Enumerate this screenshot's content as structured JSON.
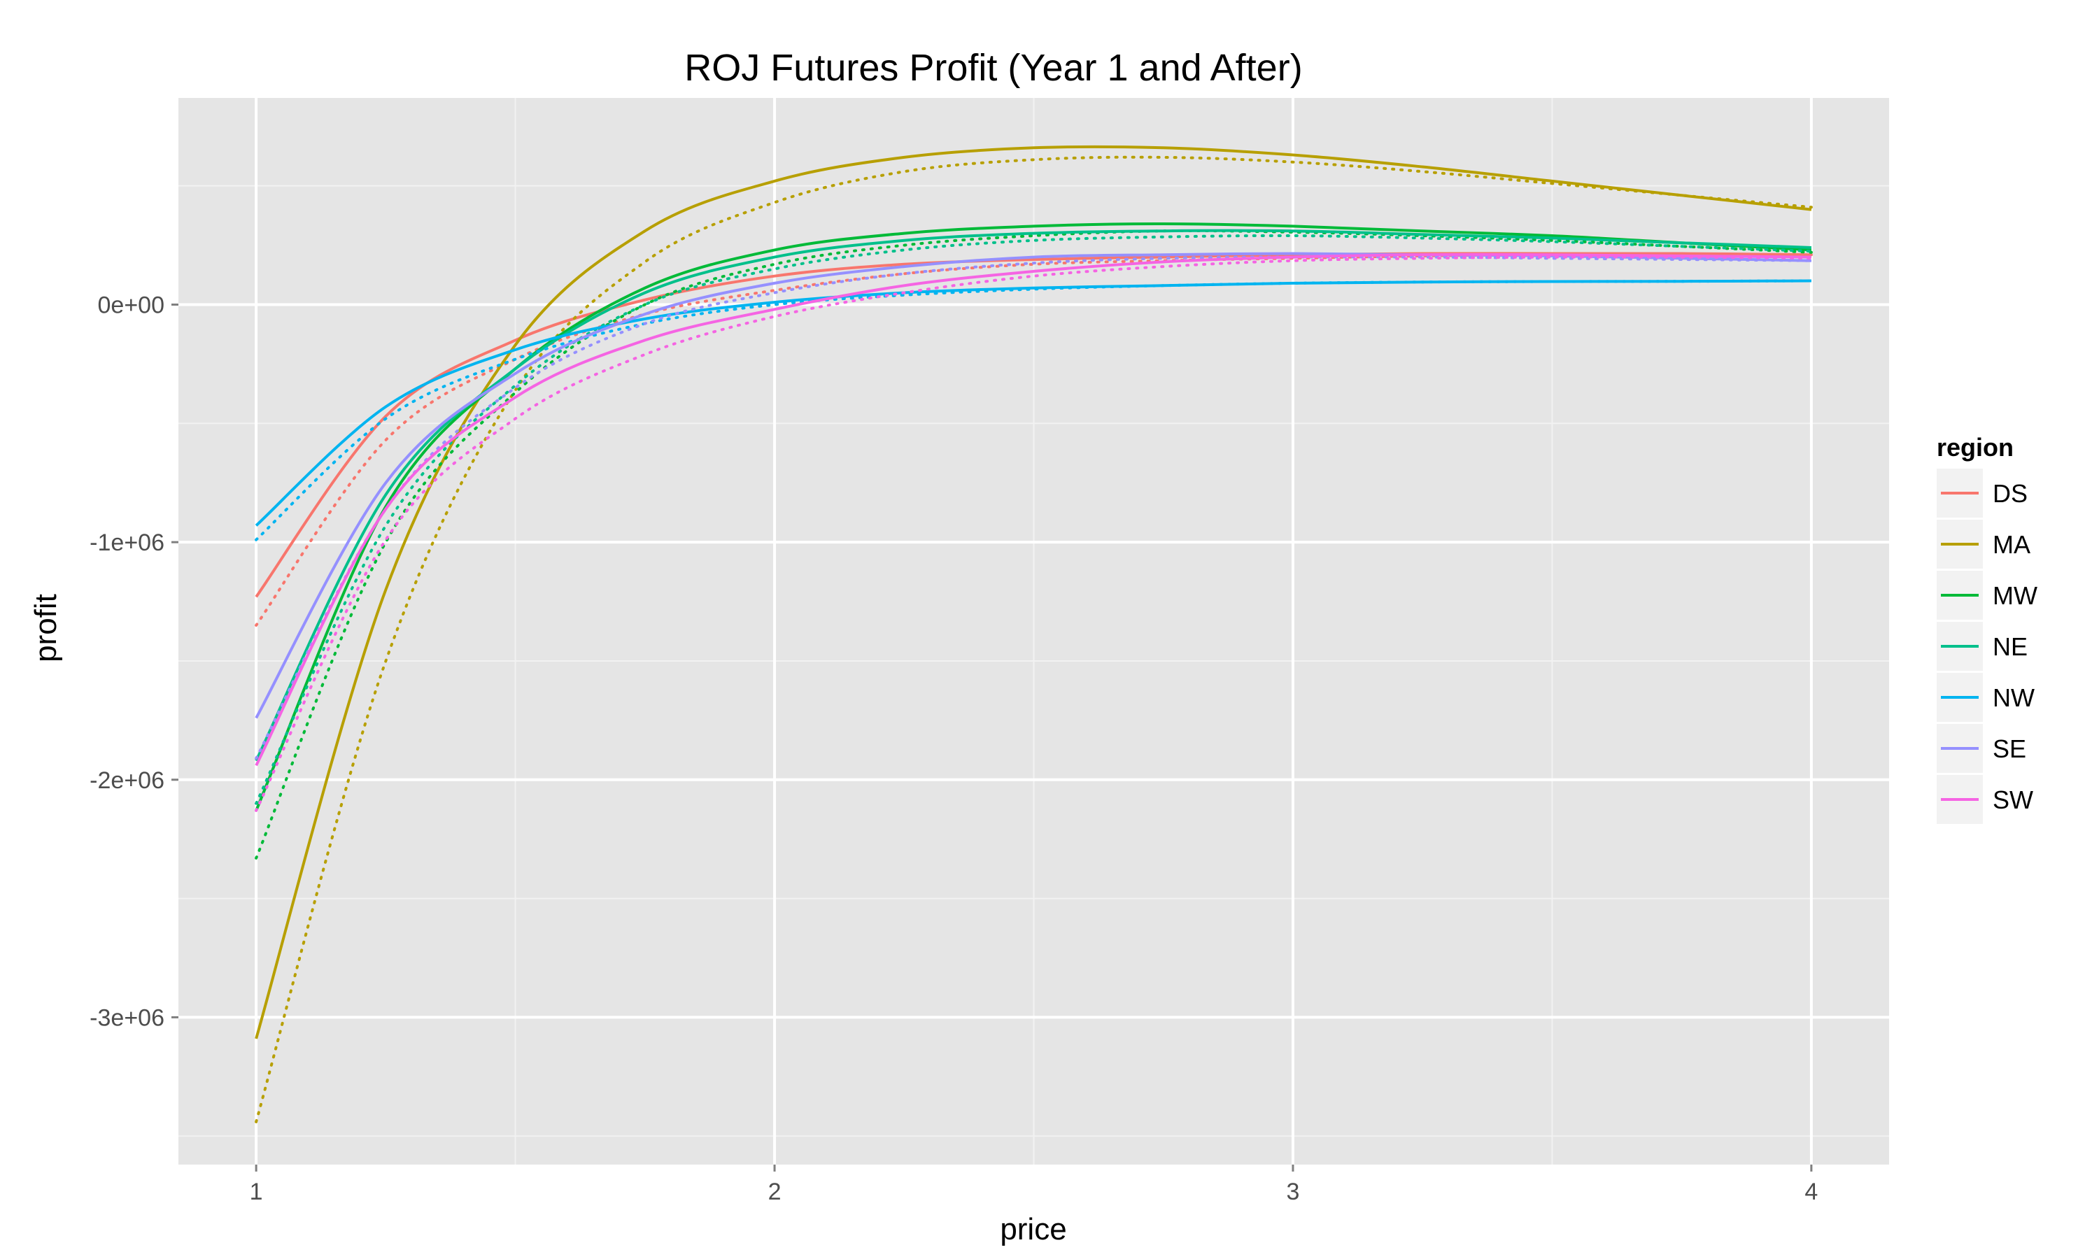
{
  "chart_data": {
    "type": "line",
    "title": "ROJ Futures Profit (Year 1 and After)",
    "xlabel": "price",
    "ylabel": "profit",
    "xlim": [
      0.85,
      4.15
    ],
    "ylim": [
      -3620000,
      870000
    ],
    "x_ticks": [
      {
        "value": 1,
        "label": "1"
      },
      {
        "value": 2,
        "label": "2"
      },
      {
        "value": 3,
        "label": "3"
      },
      {
        "value": 4,
        "label": "4"
      }
    ],
    "y_ticks": [
      {
        "value": 0,
        "label": "0e+00"
      },
      {
        "value": -1000000,
        "label": "-1e+06"
      },
      {
        "value": -2000000,
        "label": "-2e+06"
      },
      {
        "value": -3000000,
        "label": "-3e+06"
      }
    ],
    "grid": true,
    "legend": {
      "title": "region",
      "position": "right"
    },
    "line_styles": [
      {
        "name": "Year 1",
        "dash": "solid"
      },
      {
        "name": "After",
        "dash": "dotted"
      }
    ],
    "x": [
      1.0,
      1.25,
      1.5,
      1.75,
      2.0,
      2.25,
      2.5,
      2.75,
      3.0,
      3.25,
      3.5,
      3.75,
      4.0
    ],
    "series": [
      {
        "name": "DS",
        "color": "#F8766D",
        "solid": [
          -1230000,
          -470000,
          -150000,
          20000,
          120000,
          170000,
          190000,
          200000,
          210000,
          215000,
          215000,
          215000,
          210000
        ],
        "dotted": [
          -1350000,
          -570000,
          -230000,
          -40000,
          60000,
          130000,
          170000,
          185000,
          195000,
          205000,
          210000,
          210000,
          210000
        ]
      },
      {
        "name": "MA",
        "color": "#B79F00",
        "solid": [
          -3090000,
          -1200000,
          -170000,
          310000,
          520000,
          620000,
          660000,
          660000,
          630000,
          580000,
          520000,
          460000,
          400000
        ],
        "dotted": [
          -3440000,
          -1500000,
          -360000,
          180000,
          430000,
          560000,
          610000,
          620000,
          600000,
          560000,
          510000,
          460000,
          410000
        ]
      },
      {
        "name": "MW",
        "color": "#00BA38",
        "solid": [
          -2130000,
          -850000,
          -270000,
          70000,
          230000,
          300000,
          330000,
          340000,
          330000,
          310000,
          290000,
          260000,
          230000
        ],
        "dotted": [
          -2330000,
          -1000000,
          -370000,
          0,
          170000,
          250000,
          290000,
          310000,
          305000,
          290000,
          270000,
          245000,
          220000
        ]
      },
      {
        "name": "NE",
        "color": "#00C08B",
        "solid": [
          -1920000,
          -800000,
          -270000,
          50000,
          200000,
          270000,
          300000,
          310000,
          310000,
          295000,
          280000,
          260000,
          240000
        ],
        "dotted": [
          -2100000,
          -930000,
          -340000,
          0,
          150000,
          230000,
          270000,
          285000,
          290000,
          280000,
          265000,
          245000,
          225000
        ]
      },
      {
        "name": "NW",
        "color": "#00B4F0",
        "solid": [
          -930000,
          -430000,
          -190000,
          -60000,
          10000,
          50000,
          70000,
          80000,
          90000,
          95000,
          97000,
          98000,
          100000
        ],
        "dotted": [
          -990000,
          -480000,
          -230000,
          -80000,
          0,
          40000,
          65000,
          80000,
          90000,
          95000,
          97000,
          98000,
          100000
        ]
      },
      {
        "name": "SE",
        "color": "#9590FF",
        "solid": [
          -1740000,
          -750000,
          -290000,
          -40000,
          90000,
          160000,
          200000,
          210000,
          215000,
          210000,
          205000,
          195000,
          185000
        ],
        "dotted": [
          -1910000,
          -860000,
          -350000,
          -80000,
          50000,
          130000,
          175000,
          195000,
          200000,
          200000,
          195000,
          190000,
          185000
        ]
      },
      {
        "name": "SW",
        "color": "#F564E3",
        "solid": [
          -1940000,
          -860000,
          -390000,
          -150000,
          -20000,
          80000,
          140000,
          180000,
          200000,
          210000,
          210000,
          205000,
          200000
        ],
        "dotted": [
          -2130000,
          -990000,
          -480000,
          -210000,
          -50000,
          50000,
          120000,
          160000,
          185000,
          195000,
          200000,
          200000,
          195000
        ]
      }
    ]
  }
}
